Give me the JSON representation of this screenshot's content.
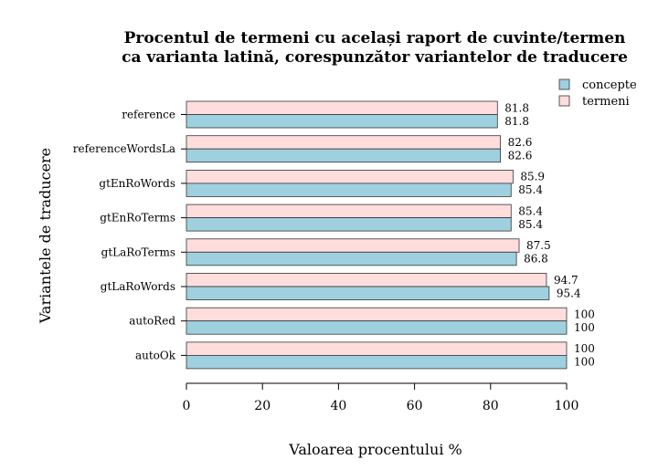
{
  "chart_data": {
    "type": "bar",
    "orientation": "horizontal",
    "title": "Procentul de termeni cu același raport de cuvinte/termen",
    "subtitle": "ca varianta latină, corespunzător variantelor de traducere",
    "xlabel": "Valoarea procentului %",
    "ylabel": "Variantele de traducere",
    "xlim": [
      0,
      100
    ],
    "xticks": [
      0,
      20,
      40,
      60,
      80,
      100
    ],
    "categories": [
      "reference",
      "referenceWordsLa",
      "gtEnRoWords",
      "gtEnRoTerms",
      "gtLaRoTerms",
      "gtLaRoWords",
      "autoRed",
      "autoOk"
    ],
    "series": [
      {
        "name": "concepte",
        "color": "#9fd0e0",
        "values": [
          81.8,
          82.6,
          85.4,
          85.4,
          86.8,
          95.4,
          100,
          100
        ]
      },
      {
        "name": "termeni",
        "color": "#ffdddd",
        "values": [
          81.8,
          82.6,
          85.9,
          85.4,
          87.5,
          94.7,
          100,
          100
        ]
      }
    ],
    "legend_position": "top-right",
    "grid": false
  }
}
